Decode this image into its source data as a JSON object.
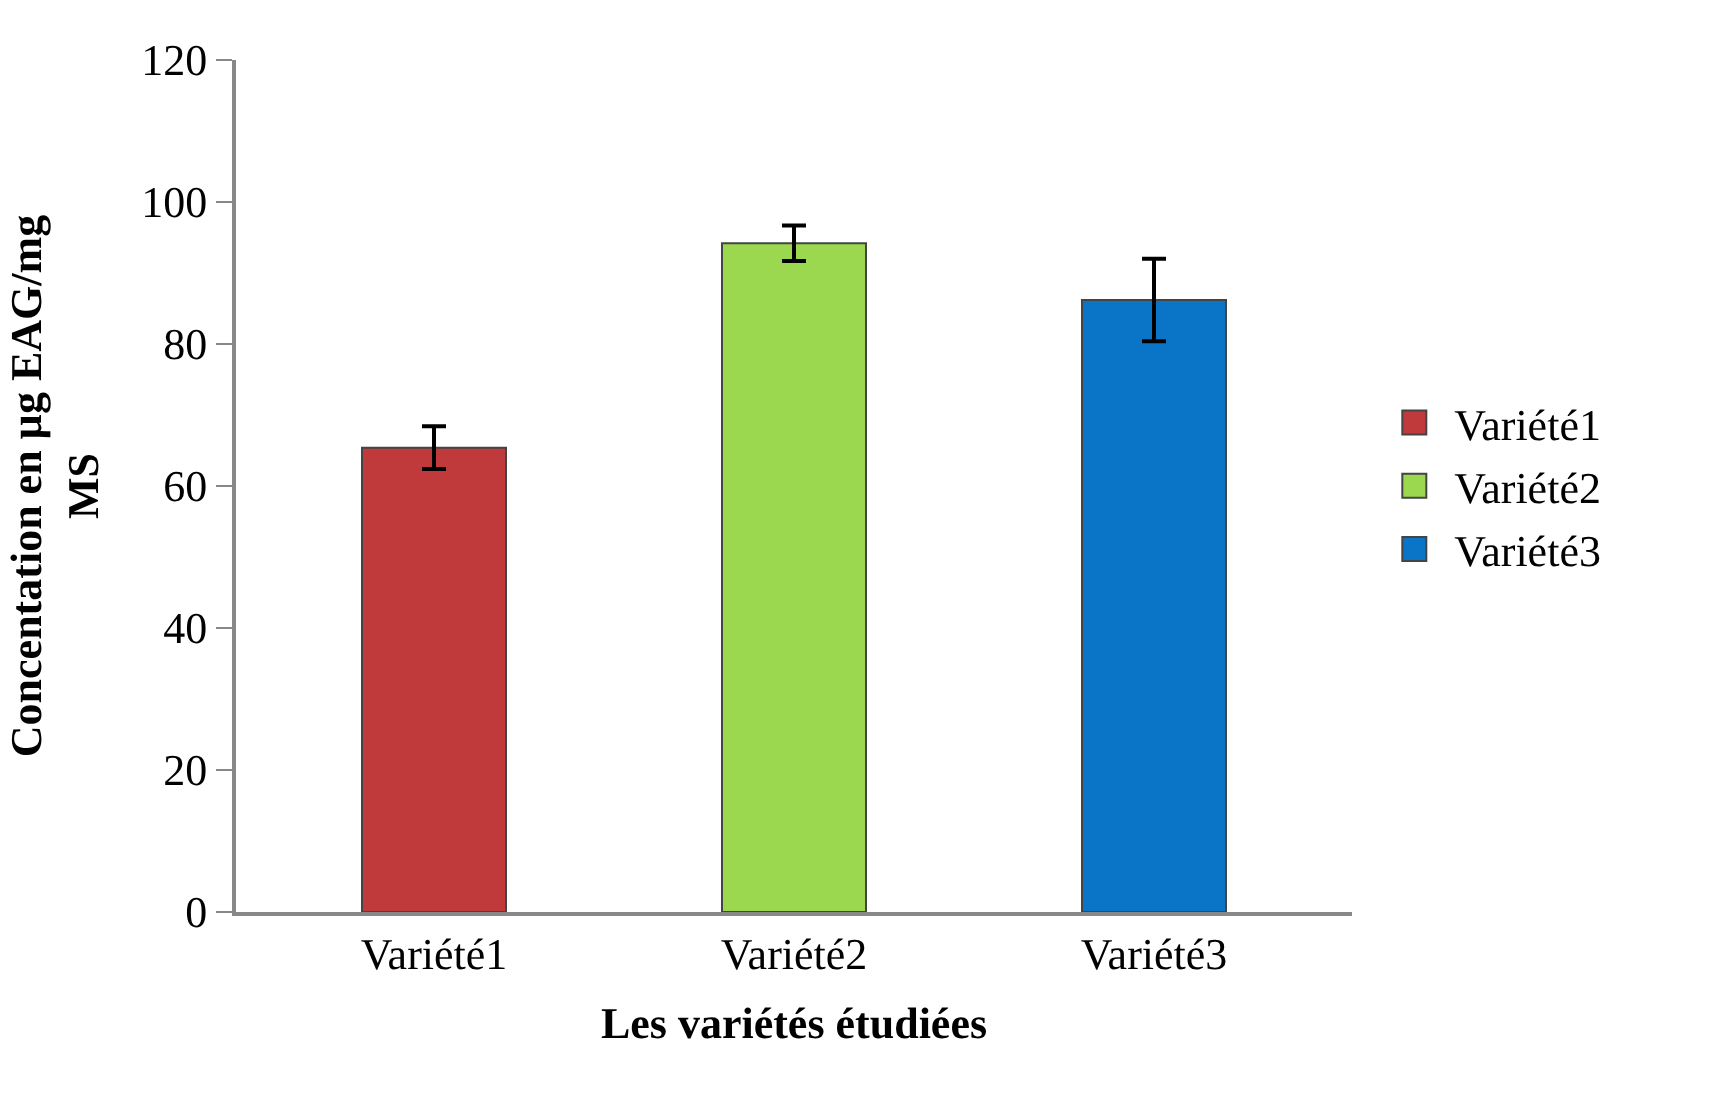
{
  "chart_data": {
    "type": "bar",
    "xlabel": "Les variétés étudiées",
    "ylabel": "Concentation en µg EAG/mg MS",
    "categories": [
      "Variété1",
      "Variété2",
      "Variété3"
    ],
    "series": [
      {
        "name": "Variété1",
        "color": "#c0393b",
        "values": [
          65.4,
          null,
          null
        ],
        "errors": [
          3,
          null,
          null
        ]
      },
      {
        "name": "Variété2",
        "color": "#9bd84f",
        "values": [
          null,
          94.2,
          null
        ],
        "errors": [
          null,
          2.5,
          null
        ]
      },
      {
        "name": "Variété3",
        "color": "#0a75c6",
        "values": [
          null,
          null,
          86.2
        ],
        "errors": [
          null,
          null,
          5.8
        ]
      }
    ],
    "ylim": [
      0,
      120
    ],
    "yticks": [
      0,
      20,
      40,
      60,
      80,
      100,
      120
    ],
    "legend": "right"
  }
}
